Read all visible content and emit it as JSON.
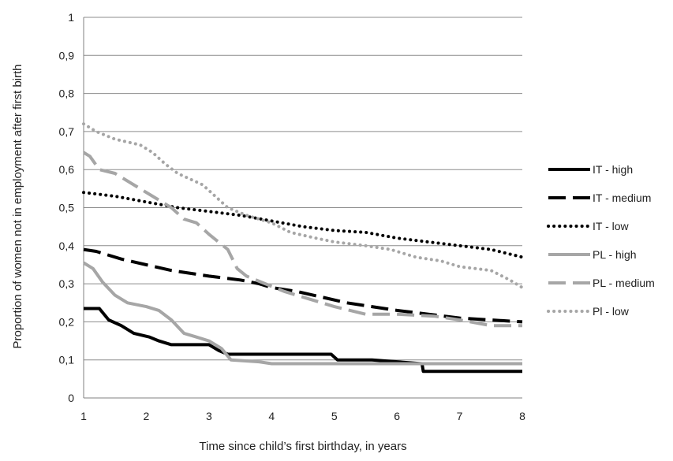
{
  "chart_data": {
    "type": "line",
    "title": "",
    "xlabel": "Time since child’s first birthday, in years",
    "ylabel": "Proportion of women not in employment after first birth",
    "xlim": [
      1,
      8
    ],
    "ylim": [
      0,
      1
    ],
    "x_ticks": [
      1,
      2,
      3,
      4,
      5,
      6,
      7,
      8
    ],
    "x_tick_labels": [
      "1",
      "2",
      "3",
      "4",
      "5",
      "6",
      "7",
      "8"
    ],
    "y_ticks": [
      0,
      0.1,
      0.2,
      0.3,
      0.4,
      0.5,
      0.6,
      0.7,
      0.8,
      0.9,
      1
    ],
    "y_tick_labels": [
      "0",
      "0,1",
      "0,2",
      "0,3",
      "0,4",
      "0,5",
      "0,6",
      "0,7",
      "0,8",
      "0,9",
      "1"
    ],
    "grid": "horizontal",
    "legend_position": "right",
    "series": [
      {
        "name": "IT - high",
        "color": "#000000",
        "dash": "solid",
        "points": [
          [
            1,
            0.235
          ],
          [
            1.25,
            0.235
          ],
          [
            1.4,
            0.205
          ],
          [
            1.6,
            0.19
          ],
          [
            1.8,
            0.17
          ],
          [
            2.05,
            0.16
          ],
          [
            2.2,
            0.15
          ],
          [
            2.4,
            0.14
          ],
          [
            3.0,
            0.14
          ],
          [
            3.15,
            0.125
          ],
          [
            3.3,
            0.115
          ],
          [
            4.0,
            0.115
          ],
          [
            4.95,
            0.115
          ],
          [
            5.05,
            0.1
          ],
          [
            5.6,
            0.1
          ],
          [
            6.4,
            0.09
          ],
          [
            6.42,
            0.07
          ],
          [
            7.5,
            0.07
          ],
          [
            8,
            0.07
          ]
        ]
      },
      {
        "name": "IT - medium",
        "color": "#000000",
        "dash": "long-dash",
        "points": [
          [
            1,
            0.39
          ],
          [
            1.2,
            0.385
          ],
          [
            1.6,
            0.365
          ],
          [
            2.0,
            0.35
          ],
          [
            2.4,
            0.335
          ],
          [
            2.8,
            0.325
          ],
          [
            3.0,
            0.32
          ],
          [
            3.5,
            0.31
          ],
          [
            3.8,
            0.3
          ],
          [
            4.0,
            0.29
          ],
          [
            4.4,
            0.28
          ],
          [
            4.8,
            0.265
          ],
          [
            5.2,
            0.25
          ],
          [
            5.6,
            0.24
          ],
          [
            6.0,
            0.23
          ],
          [
            6.5,
            0.22
          ],
          [
            7.0,
            0.21
          ],
          [
            7.5,
            0.205
          ],
          [
            8,
            0.2
          ]
        ]
      },
      {
        "name": "IT - low",
        "color": "#000000",
        "dash": "dotted",
        "points": [
          [
            1,
            0.54
          ],
          [
            1.5,
            0.53
          ],
          [
            2.0,
            0.515
          ],
          [
            2.5,
            0.5
          ],
          [
            3.0,
            0.49
          ],
          [
            3.5,
            0.48
          ],
          [
            4.0,
            0.465
          ],
          [
            4.5,
            0.45
          ],
          [
            5.0,
            0.44
          ],
          [
            5.5,
            0.435
          ],
          [
            6.0,
            0.42
          ],
          [
            6.5,
            0.41
          ],
          [
            7.0,
            0.4
          ],
          [
            7.5,
            0.39
          ],
          [
            8,
            0.37
          ]
        ]
      },
      {
        "name": "PL - high",
        "color": "#a6a6a6",
        "dash": "solid",
        "points": [
          [
            1,
            0.355
          ],
          [
            1.15,
            0.34
          ],
          [
            1.3,
            0.305
          ],
          [
            1.5,
            0.27
          ],
          [
            1.7,
            0.25
          ],
          [
            2.0,
            0.24
          ],
          [
            2.2,
            0.23
          ],
          [
            2.4,
            0.205
          ],
          [
            2.6,
            0.17
          ],
          [
            2.8,
            0.16
          ],
          [
            3.0,
            0.15
          ],
          [
            3.2,
            0.13
          ],
          [
            3.35,
            0.1
          ],
          [
            3.8,
            0.095
          ],
          [
            4.0,
            0.09
          ],
          [
            5.0,
            0.09
          ],
          [
            6.0,
            0.09
          ],
          [
            7.0,
            0.09
          ],
          [
            8,
            0.09
          ]
        ]
      },
      {
        "name": "PL - medium",
        "color": "#a6a6a6",
        "dash": "long-dash",
        "points": [
          [
            1,
            0.645
          ],
          [
            1.1,
            0.635
          ],
          [
            1.25,
            0.6
          ],
          [
            1.5,
            0.59
          ],
          [
            1.8,
            0.56
          ],
          [
            2.1,
            0.53
          ],
          [
            2.4,
            0.5
          ],
          [
            2.6,
            0.47
          ],
          [
            2.8,
            0.46
          ],
          [
            3.0,
            0.43
          ],
          [
            3.15,
            0.41
          ],
          [
            3.3,
            0.39
          ],
          [
            3.45,
            0.34
          ],
          [
            3.6,
            0.32
          ],
          [
            3.9,
            0.3
          ],
          [
            4.2,
            0.28
          ],
          [
            4.6,
            0.26
          ],
          [
            5.0,
            0.24
          ],
          [
            5.5,
            0.22
          ],
          [
            6.0,
            0.22
          ],
          [
            6.6,
            0.215
          ],
          [
            7.0,
            0.205
          ],
          [
            7.5,
            0.19
          ],
          [
            8,
            0.19
          ]
        ]
      },
      {
        "name": "Pl - low",
        "color": "#a6a6a6",
        "dash": "dotted",
        "points": [
          [
            1,
            0.72
          ],
          [
            1.2,
            0.7
          ],
          [
            1.5,
            0.68
          ],
          [
            1.9,
            0.665
          ],
          [
            2.1,
            0.645
          ],
          [
            2.3,
            0.615
          ],
          [
            2.5,
            0.59
          ],
          [
            2.9,
            0.56
          ],
          [
            3.1,
            0.53
          ],
          [
            3.3,
            0.5
          ],
          [
            3.6,
            0.48
          ],
          [
            4.0,
            0.46
          ],
          [
            4.3,
            0.435
          ],
          [
            4.7,
            0.42
          ],
          [
            5.0,
            0.41
          ],
          [
            5.5,
            0.4
          ],
          [
            5.9,
            0.39
          ],
          [
            6.3,
            0.37
          ],
          [
            6.7,
            0.36
          ],
          [
            7.0,
            0.345
          ],
          [
            7.5,
            0.335
          ],
          [
            7.8,
            0.31
          ],
          [
            8,
            0.29
          ]
        ]
      }
    ]
  }
}
